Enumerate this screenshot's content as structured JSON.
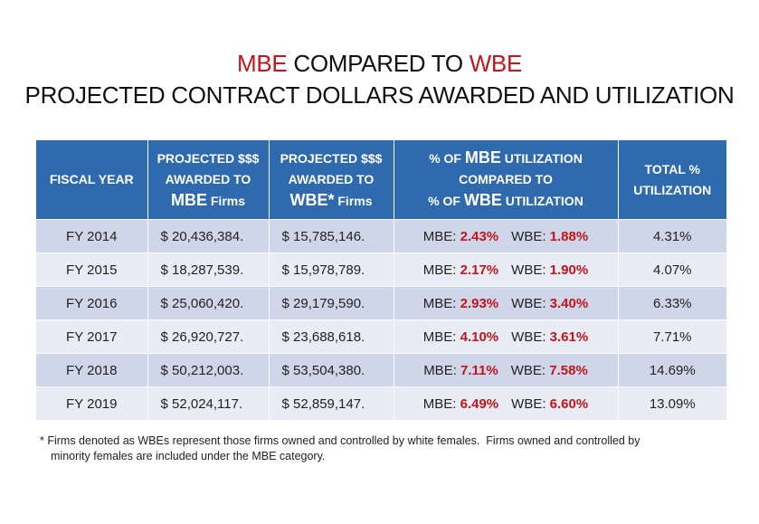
{
  "title": {
    "line1": {
      "mbe": "MBE",
      "compared": " COMPARED TO ",
      "wbe": "WBE"
    },
    "line2": "PROJECTED CONTRACT DOLLARS AWARDED AND UTILIZATION"
  },
  "colors": {
    "header_bg": "#2e6aad",
    "accent_red": "#c0161c",
    "row_odd": "#d0d6e9",
    "row_even": "#e9ebf5"
  },
  "table": {
    "headers": {
      "fiscal_year": "FISCAL YEAR",
      "mbe_dollars": {
        "l1": "PROJECTED $$$",
        "l2": "AWARDED TO",
        "big": "MBE",
        "small": " Firms"
      },
      "wbe_dollars": {
        "l1": "PROJECTED $$$",
        "l2": "AWARDED TO",
        "big": "WBE*",
        "small": " Firms"
      },
      "utilization": {
        "a_pre": "% OF ",
        "a_big": "MBE",
        "a_post": " UTILIZATION",
        "mid": "COMPARED TO",
        "b_pre": "% OF ",
        "b_big": "WBE",
        "b_post": " UTILIZATION"
      },
      "total": {
        "l1": "TOTAL %",
        "l2": "UTILIZATION"
      }
    },
    "mbe_label": "MBE: ",
    "wbe_label": "WBE: ",
    "rows": [
      {
        "year": "FY 2014",
        "mbe_dollars": "$ 20,436,384.",
        "wbe_dollars": "$ 15,785,146.",
        "mbe_pct": "2.43%",
        "wbe_pct": "1.88%",
        "total": "4.31%"
      },
      {
        "year": "FY 2015",
        "mbe_dollars": "$ 18,287,539.",
        "wbe_dollars": "$ 15,978,789.",
        "mbe_pct": "2.17%",
        "wbe_pct": "1.90%",
        "total": "4.07%"
      },
      {
        "year": "FY 2016",
        "mbe_dollars": "$ 25,060,420.",
        "wbe_dollars": "$ 29,179,590.",
        "mbe_pct": "2.93%",
        "wbe_pct": "3.40%",
        "total": "6.33%"
      },
      {
        "year": "FY 2017",
        "mbe_dollars": "$ 26,920,727.",
        "wbe_dollars": "$ 23,688,618.",
        "mbe_pct": "4.10%",
        "wbe_pct": "3.61%",
        "total": "7.71%"
      },
      {
        "year": "FY 2018",
        "mbe_dollars": "$ 50,212,003.",
        "wbe_dollars": "$ 53,504,380.",
        "mbe_pct": "7.11%",
        "wbe_pct": "7.58%",
        "total": "14.69%"
      },
      {
        "year": "FY 2019",
        "mbe_dollars": "$ 52,024,117.",
        "wbe_dollars": "$ 52,859,147.",
        "mbe_pct": "6.49%",
        "wbe_pct": "6.60%",
        "total": "13.09%"
      }
    ]
  },
  "footnote": {
    "line1": "* Firms denoted as WBEs represent those firms owned and controlled by white females.  Firms owned and controlled by",
    "line2": "minority females are included under the MBE category."
  }
}
